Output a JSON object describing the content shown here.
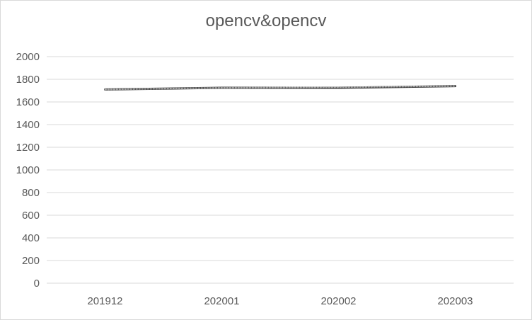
{
  "chart_data": {
    "type": "line",
    "title": "opencv&opencv",
    "xlabel": "",
    "ylabel": "",
    "categories": [
      "201912",
      "202001",
      "202002",
      "202003"
    ],
    "series": [
      {
        "values": [
          1710,
          1725,
          1725,
          1740
        ]
      },
      {
        "values": [
          1710,
          1725,
          1730,
          1740
        ]
      }
    ],
    "ylim": [
      0,
      2000
    ],
    "yticks": [
      0,
      200,
      400,
      600,
      800,
      1000,
      1200,
      1400,
      1600,
      1800,
      2000
    ],
    "grid": true,
    "colors": {
      "line": "#404040",
      "trend": "#a6a6a6",
      "grid": "#d9d9d9",
      "text": "#595959"
    }
  }
}
